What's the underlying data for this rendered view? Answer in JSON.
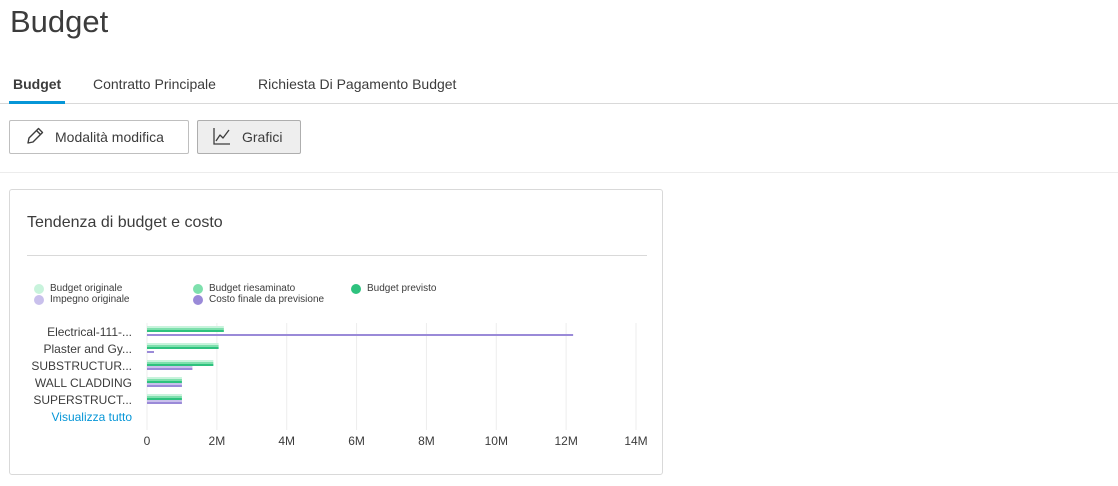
{
  "page": {
    "title": "Budget"
  },
  "tabs": [
    {
      "label": "Budget",
      "active": true
    },
    {
      "label": "Contratto Principale",
      "active": false
    },
    {
      "label": "Richiesta Di Pagamento Budget",
      "active": false
    }
  ],
  "toolbar": {
    "edit_mode_label": "Modalità modifica",
    "charts_label": "Grafici",
    "edit_icon": "pencil-icon",
    "charts_icon": "line-chart-icon"
  },
  "card": {
    "title": "Tendenza di budget e costo",
    "view_all_label": "Visualizza tutto"
  },
  "legend": [
    {
      "name": "Budget originale",
      "color": "#c8f3dc"
    },
    {
      "name": "Budget riesaminato",
      "color": "#7ee0ad"
    },
    {
      "name": "Budget previsto",
      "color": "#2ec27e"
    },
    {
      "name": "Impegno originale",
      "color": "#c9c0ec"
    },
    {
      "name": "Costo finale da previsione",
      "color": "#9a8ad8"
    }
  ],
  "chart_data": {
    "type": "bar",
    "orientation": "horizontal",
    "categories": [
      "Electrical-111-...",
      "Plaster and Gy...",
      "SUBSTRUCTUR...",
      "WALL CLADDING",
      "SUPERSTRUCT..."
    ],
    "series": [
      {
        "name": "Budget originale",
        "values": [
          2200000,
          2050000,
          1900000,
          1000000,
          1000000
        ]
      },
      {
        "name": "Budget riesaminato",
        "values": [
          2200000,
          2050000,
          1900000,
          1000000,
          1000000
        ]
      },
      {
        "name": "Budget previsto",
        "values": [
          2200000,
          2050000,
          1900000,
          1000000,
          1000000
        ]
      },
      {
        "name": "Impegno originale",
        "values": [
          0,
          0,
          1300000,
          1000000,
          1000000
        ]
      },
      {
        "name": "Costo finale da previsione",
        "values": [
          12200000,
          200000,
          1300000,
          1000000,
          1000000
        ]
      }
    ],
    "xlim": [
      0,
      14000000
    ],
    "x_ticks": [
      0,
      2000000,
      4000000,
      6000000,
      8000000,
      10000000,
      12000000,
      14000000
    ],
    "x_tick_labels": [
      "0",
      "2M",
      "4M",
      "6M",
      "8M",
      "10M",
      "12M",
      "14M"
    ],
    "grid": true,
    "legend_position": "top-left"
  }
}
